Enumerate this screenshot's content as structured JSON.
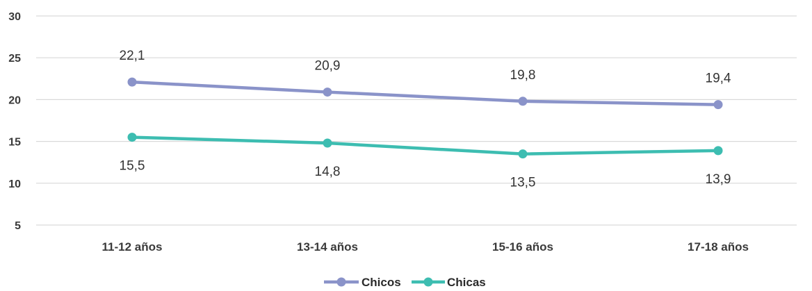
{
  "chart_data": {
    "type": "line",
    "categories": [
      "11-12 años",
      "13-14 años",
      "15-16 años",
      "17-18 años"
    ],
    "series": [
      {
        "name": "Chicos",
        "values": [
          22.1,
          20.9,
          19.8,
          19.4
        ],
        "labels": [
          "22,1",
          "20,9",
          "19,8",
          "19,4"
        ],
        "color": "#8a93c9"
      },
      {
        "name": "Chicas",
        "values": [
          15.5,
          14.8,
          13.5,
          13.9
        ],
        "labels": [
          "15,5",
          "14,8",
          "13,5",
          "13,9"
        ],
        "color": "#3dbdb1"
      }
    ],
    "yticks": [
      5,
      10,
      15,
      20,
      25,
      30
    ],
    "ylim": [
      5,
      30
    ],
    "grid": true,
    "legend": "bottom"
  }
}
